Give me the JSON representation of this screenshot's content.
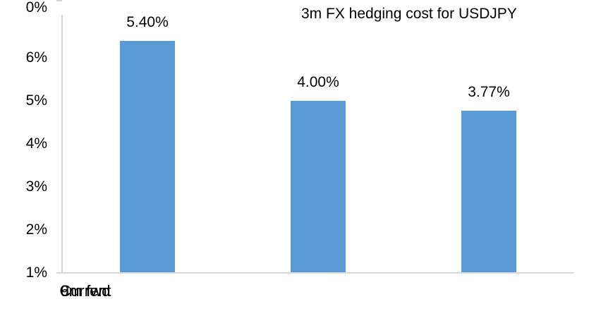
{
  "chart_data": {
    "type": "bar",
    "title": "3m FX hedging cost for USDJPY",
    "categories": [
      "Current",
      "6m fwd",
      "9m fwd"
    ],
    "values": [
      5.4,
      4.0,
      3.77
    ],
    "value_labels": [
      "5.40%",
      "4.00%",
      "3.77%"
    ],
    "y_ticks": [
      "6%",
      "5%",
      "4%",
      "3%",
      "2%",
      "1%",
      "0%"
    ],
    "ylabel": "",
    "xlabel": "",
    "ylim": [
      0,
      6
    ],
    "grid": false,
    "legend": "none",
    "bar_color": "#5b9bd5",
    "axis_color": "#d4d4d4",
    "text_color": "#000000"
  }
}
